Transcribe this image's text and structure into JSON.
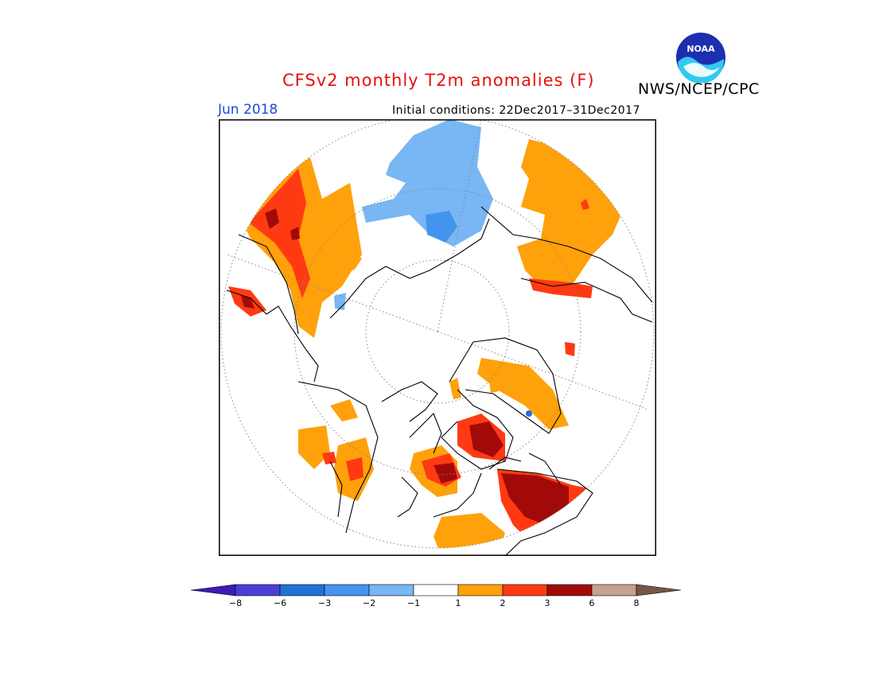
{
  "header": {
    "title": "CFSv2 monthly T2m anomalies (F)",
    "agency": "NWS/NCEP/CPC",
    "month": "Jun 2018",
    "initial_conditions": "Initial conditions: 22Dec2017–31Dec2017"
  },
  "logo": {
    "text": "NOAA",
    "icon": "noaa-logo"
  },
  "legend": {
    "colors": [
      "#3d1bb5",
      "#4a3fd4",
      "#2171d8",
      "#4494ee",
      "#78b6f4",
      "#ffffff",
      "#ffa10a",
      "#ff3a12",
      "#a20a0a",
      "#c7a08f",
      "#7a5445"
    ],
    "labels": [
      "−8",
      "−6",
      "−3",
      "−2",
      "−1",
      "1",
      "2",
      "3",
      "6",
      "8"
    ]
  }
}
